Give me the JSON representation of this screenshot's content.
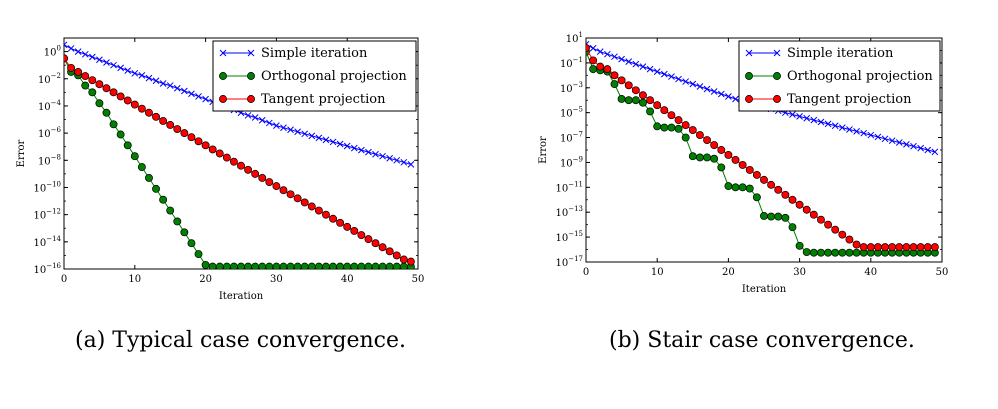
{
  "captions": {
    "a": "(a) Typical case convergence.",
    "b": "(b) Stair case convergence."
  },
  "colors": {
    "simple": "#0000ff",
    "orthogonal": "#008000",
    "tangent": "#ff0000"
  },
  "chart_data": [
    {
      "type": "line",
      "xlabel": "Iteration",
      "ylabel": "Error",
      "xlim": [
        0,
        50
      ],
      "ylim_log10": [
        -16,
        1
      ],
      "yscale": "log",
      "x_ticks": [
        0,
        10,
        20,
        30,
        40,
        50
      ],
      "y_ticks": [
        {
          "base": "10",
          "exp": "0",
          "value": 1.0
        },
        {
          "base": "10",
          "exp": "−2",
          "value": 0.01
        },
        {
          "base": "10",
          "exp": "−4",
          "value": 0.0001
        },
        {
          "base": "10",
          "exp": "−6",
          "value": 1e-06
        },
        {
          "base": "10",
          "exp": "−8",
          "value": 1e-08
        },
        {
          "base": "10",
          "exp": "−10",
          "value": 1e-10
        },
        {
          "base": "10",
          "exp": "−12",
          "value": 1e-12
        },
        {
          "base": "10",
          "exp": "−14",
          "value": 1e-14
        },
        {
          "base": "10",
          "exp": "−16",
          "value": 1e-16
        }
      ],
      "legend": "top-right",
      "series": [
        {
          "name": "Simple iteration",
          "marker": "x",
          "color": "#0000ff",
          "x": [
            0,
            1,
            2,
            3,
            4,
            5,
            6,
            7,
            8,
            9,
            10,
            11,
            12,
            13,
            14,
            15,
            16,
            17,
            18,
            19,
            20,
            21,
            22,
            23,
            24,
            25,
            26,
            27,
            28,
            29,
            30,
            31,
            32,
            33,
            34,
            35,
            36,
            37,
            38,
            39,
            40,
            41,
            42,
            43,
            44,
            45,
            46,
            47,
            48,
            49
          ],
          "y": [
            3.16,
            1.7,
            1.0,
            0.631,
            0.398,
            0.251,
            0.158,
            0.1,
            0.0631,
            0.0398,
            0.0251,
            0.0178,
            0.0112,
            0.0071,
            0.00447,
            0.00316,
            0.002,
            0.00126,
            0.00079,
            0.0005,
            0.000316,
            0.0002,
            0.000126,
            7.9e-05,
            5e-05,
            3.16e-05,
            2e-05,
            1.41e-05,
            8.9e-06,
            5.6e-06,
            3.55e-06,
            2.5e-06,
            1.78e-06,
            1.26e-06,
            8.9e-07,
            6.3e-07,
            4.47e-07,
            3.16e-07,
            2.24e-07,
            1.58e-07,
            1.12e-07,
            7.9e-08,
            5.6e-08,
            4e-08,
            2.8e-08,
            2e-08,
            1.41e-08,
            1e-08,
            7.1e-09,
            5e-09
          ]
        },
        {
          "name": "Orthogonal projection",
          "marker": "o",
          "color": "#008000",
          "x": [
            0,
            1,
            2,
            3,
            4,
            5,
            6,
            7,
            8,
            9,
            10,
            11,
            12,
            13,
            14,
            15,
            16,
            17,
            18,
            19,
            20,
            21,
            22,
            23,
            24,
            25,
            26,
            27,
            28,
            29,
            30,
            31,
            32,
            33,
            34,
            35,
            36,
            37,
            38,
            39,
            40,
            41,
            42,
            43,
            44,
            45,
            46,
            47,
            48,
            49
          ],
          "y": [
            0.316,
            0.0316,
            0.0178,
            0.00316,
            0.001,
            0.000158,
            3.16e-05,
            4.47e-06,
            7.9e-07,
            1.26e-07,
            2e-08,
            3.16e-09,
            5e-10,
            7.9e-11,
            1.26e-11,
            2e-12,
            3.16e-13,
            5e-14,
            7.9e-15,
            1.26e-15,
            2e-16,
            1.5e-16,
            1.5e-16,
            1.5e-16,
            1.5e-16,
            1.5e-16,
            1.5e-16,
            1.5e-16,
            1.5e-16,
            1.5e-16,
            1.5e-16,
            1.5e-16,
            1.5e-16,
            1.5e-16,
            1.5e-16,
            1.5e-16,
            1.5e-16,
            1.5e-16,
            1.5e-16,
            1.5e-16,
            1.5e-16,
            1.5e-16,
            1.5e-16,
            1.5e-16,
            1.5e-16,
            1.5e-16,
            1.5e-16,
            1.5e-16,
            1.5e-16,
            1.5e-16
          ]
        },
        {
          "name": "Tangent projection",
          "marker": "o",
          "color": "#ff0000",
          "x": [
            0,
            1,
            2,
            3,
            4,
            5,
            6,
            7,
            8,
            9,
            10,
            11,
            12,
            13,
            14,
            15,
            16,
            17,
            18,
            19,
            20,
            21,
            22,
            23,
            24,
            25,
            26,
            27,
            28,
            29,
            30,
            31,
            32,
            33,
            34,
            35,
            36,
            37,
            38,
            39,
            40,
            41,
            42,
            43,
            44,
            45,
            46,
            47,
            48,
            49
          ],
          "y": [
            0.316,
            0.0631,
            0.0316,
            0.0158,
            0.0079,
            0.00398,
            0.002,
            0.001,
            0.0005,
            0.000251,
            0.000126,
            6.3e-05,
            3.16e-05,
            1.58e-05,
            7.9e-06,
            3.98e-06,
            2e-06,
            1e-06,
            5e-07,
            2.51e-07,
            1.26e-07,
            6.3e-08,
            3.16e-08,
            1.58e-08,
            7.9e-09,
            3.98e-09,
            2e-09,
            1e-09,
            5e-10,
            2.51e-10,
            1.26e-10,
            6.3e-11,
            3.16e-11,
            1.58e-11,
            7.9e-12,
            3.98e-12,
            2e-12,
            1e-12,
            5e-13,
            2.51e-13,
            1.26e-13,
            6.3e-14,
            3.16e-14,
            1.58e-14,
            7.9e-15,
            3.98e-15,
            2e-15,
            1e-15,
            5e-16,
            3.5e-16
          ]
        }
      ]
    },
    {
      "type": "line",
      "xlabel": "Iteration",
      "ylabel": "Error",
      "xlim": [
        0,
        50
      ],
      "ylim_log10": [
        -17,
        1
      ],
      "yscale": "log",
      "x_ticks": [
        0,
        10,
        20,
        30,
        40,
        50
      ],
      "y_ticks": [
        {
          "base": "10",
          "exp": "1",
          "value": 10.0
        },
        {
          "base": "10",
          "exp": "−1",
          "value": 0.1
        },
        {
          "base": "10",
          "exp": "−3",
          "value": 0.001
        },
        {
          "base": "10",
          "exp": "−5",
          "value": 1e-05
        },
        {
          "base": "10",
          "exp": "−7",
          "value": 1e-07
        },
        {
          "base": "10",
          "exp": "−9",
          "value": 1e-09
        },
        {
          "base": "10",
          "exp": "−11",
          "value": 1e-11
        },
        {
          "base": "10",
          "exp": "−13",
          "value": 1e-13
        },
        {
          "base": "10",
          "exp": "−15",
          "value": 1e-15
        },
        {
          "base": "10",
          "exp": "−17",
          "value": 1e-17
        }
      ],
      "legend": "top-right",
      "series": [
        {
          "name": "Simple iteration",
          "marker": "x",
          "color": "#0000ff",
          "x": [
            0,
            1,
            2,
            3,
            4,
            5,
            6,
            7,
            8,
            9,
            10,
            11,
            12,
            13,
            14,
            15,
            16,
            17,
            18,
            19,
            20,
            21,
            22,
            23,
            24,
            25,
            26,
            27,
            28,
            29,
            30,
            31,
            32,
            33,
            34,
            35,
            36,
            37,
            38,
            39,
            40,
            41,
            42,
            43,
            44,
            45,
            46,
            47,
            48,
            49
          ],
          "y": [
            3.16,
            1.5,
            0.8,
            0.5,
            0.316,
            0.2,
            0.126,
            0.0794,
            0.05,
            0.0316,
            0.02,
            0.0126,
            0.00794,
            0.005,
            0.00316,
            0.002,
            0.00126,
            0.000794,
            0.0005,
            0.000316,
            0.0002,
            0.000126,
            7.94e-05,
            5.62e-05,
            3.98e-05,
            2.82e-05,
            2e-05,
            1.41e-05,
            1e-05,
            7.08e-06,
            5.01e-06,
            3.55e-06,
            2.51e-06,
            1.78e-06,
            1.26e-06,
            8.91e-07,
            6.31e-07,
            4.47e-07,
            3.16e-07,
            2.24e-07,
            1.58e-07,
            1.12e-07,
            7.94e-08,
            5.62e-08,
            3.98e-08,
            2.82e-08,
            2e-08,
            1.41e-08,
            1e-08,
            7.08e-09
          ]
        },
        {
          "name": "Orthogonal projection",
          "marker": "o",
          "color": "#008000",
          "x": [
            0,
            1,
            2,
            3,
            4,
            5,
            6,
            7,
            8,
            9,
            10,
            11,
            12,
            13,
            14,
            15,
            16,
            17,
            18,
            19,
            20,
            21,
            22,
            23,
            24,
            25,
            26,
            27,
            28,
            29,
            30,
            31,
            32,
            33,
            34,
            35,
            36,
            37,
            38,
            39,
            40,
            41,
            42,
            43,
            44,
            45,
            46,
            47,
            48,
            49
          ],
          "y": [
            0.794,
            0.0316,
            0.0251,
            0.02,
            0.002,
            0.000126,
            0.0001,
            0.0001,
            6.31e-05,
            1.26e-05,
            7.94e-07,
            6.31e-07,
            6.31e-07,
            5.01e-07,
            1e-07,
            3.16e-09,
            2.51e-09,
            2.51e-09,
            2e-09,
            3.98e-10,
            1.26e-11,
            1e-11,
            1e-11,
            7.94e-12,
            1.58e-12,
            5.01e-14,
            4.47e-14,
            4.47e-14,
            3.55e-14,
            6.31e-15,
            2e-16,
            6.31e-17,
            5.62e-17,
            5.62e-17,
            5.62e-17,
            5.62e-17,
            5.62e-17,
            5.62e-17,
            5.62e-17,
            5.62e-17,
            5.62e-17,
            5.62e-17,
            5.62e-17,
            5.62e-17,
            5.62e-17,
            5.62e-17,
            5.62e-17,
            5.62e-17,
            5.62e-17,
            5.62e-17
          ]
        },
        {
          "name": "Tangent projection",
          "marker": "o",
          "color": "#ff0000",
          "x": [
            0,
            1,
            2,
            3,
            4,
            5,
            6,
            7,
            8,
            9,
            10,
            11,
            12,
            13,
            14,
            15,
            16,
            17,
            18,
            19,
            20,
            21,
            22,
            23,
            24,
            25,
            26,
            27,
            28,
            29,
            30,
            31,
            32,
            33,
            34,
            35,
            36,
            37,
            38,
            39,
            40,
            41,
            42,
            43,
            44,
            45,
            46,
            47,
            48,
            49
          ],
          "y": [
            1.58,
            0.158,
            0.05,
            0.0316,
            0.01,
            0.00398,
            0.00158,
            0.000631,
            0.000251,
            0.0001,
            3.98e-05,
            1.58e-05,
            6.31e-06,
            2.51e-06,
            1e-06,
            3.98e-07,
            1.58e-07,
            6.31e-08,
            2.51e-08,
            1e-08,
            3.98e-09,
            1.58e-09,
            6.31e-10,
            2.51e-10,
            1e-10,
            3.98e-11,
            1.58e-11,
            6.31e-12,
            2.51e-12,
            1e-12,
            3.98e-13,
            1.58e-13,
            6.31e-14,
            2.51e-14,
            1e-14,
            3.98e-15,
            1.58e-15,
            6.31e-16,
            2.51e-16,
            1.58e-16,
            1.58e-16,
            1.58e-16,
            1.58e-16,
            1.58e-16,
            1.58e-16,
            1.58e-16,
            1.58e-16,
            1.58e-16,
            1.58e-16,
            1.58e-16
          ]
        }
      ]
    }
  ]
}
